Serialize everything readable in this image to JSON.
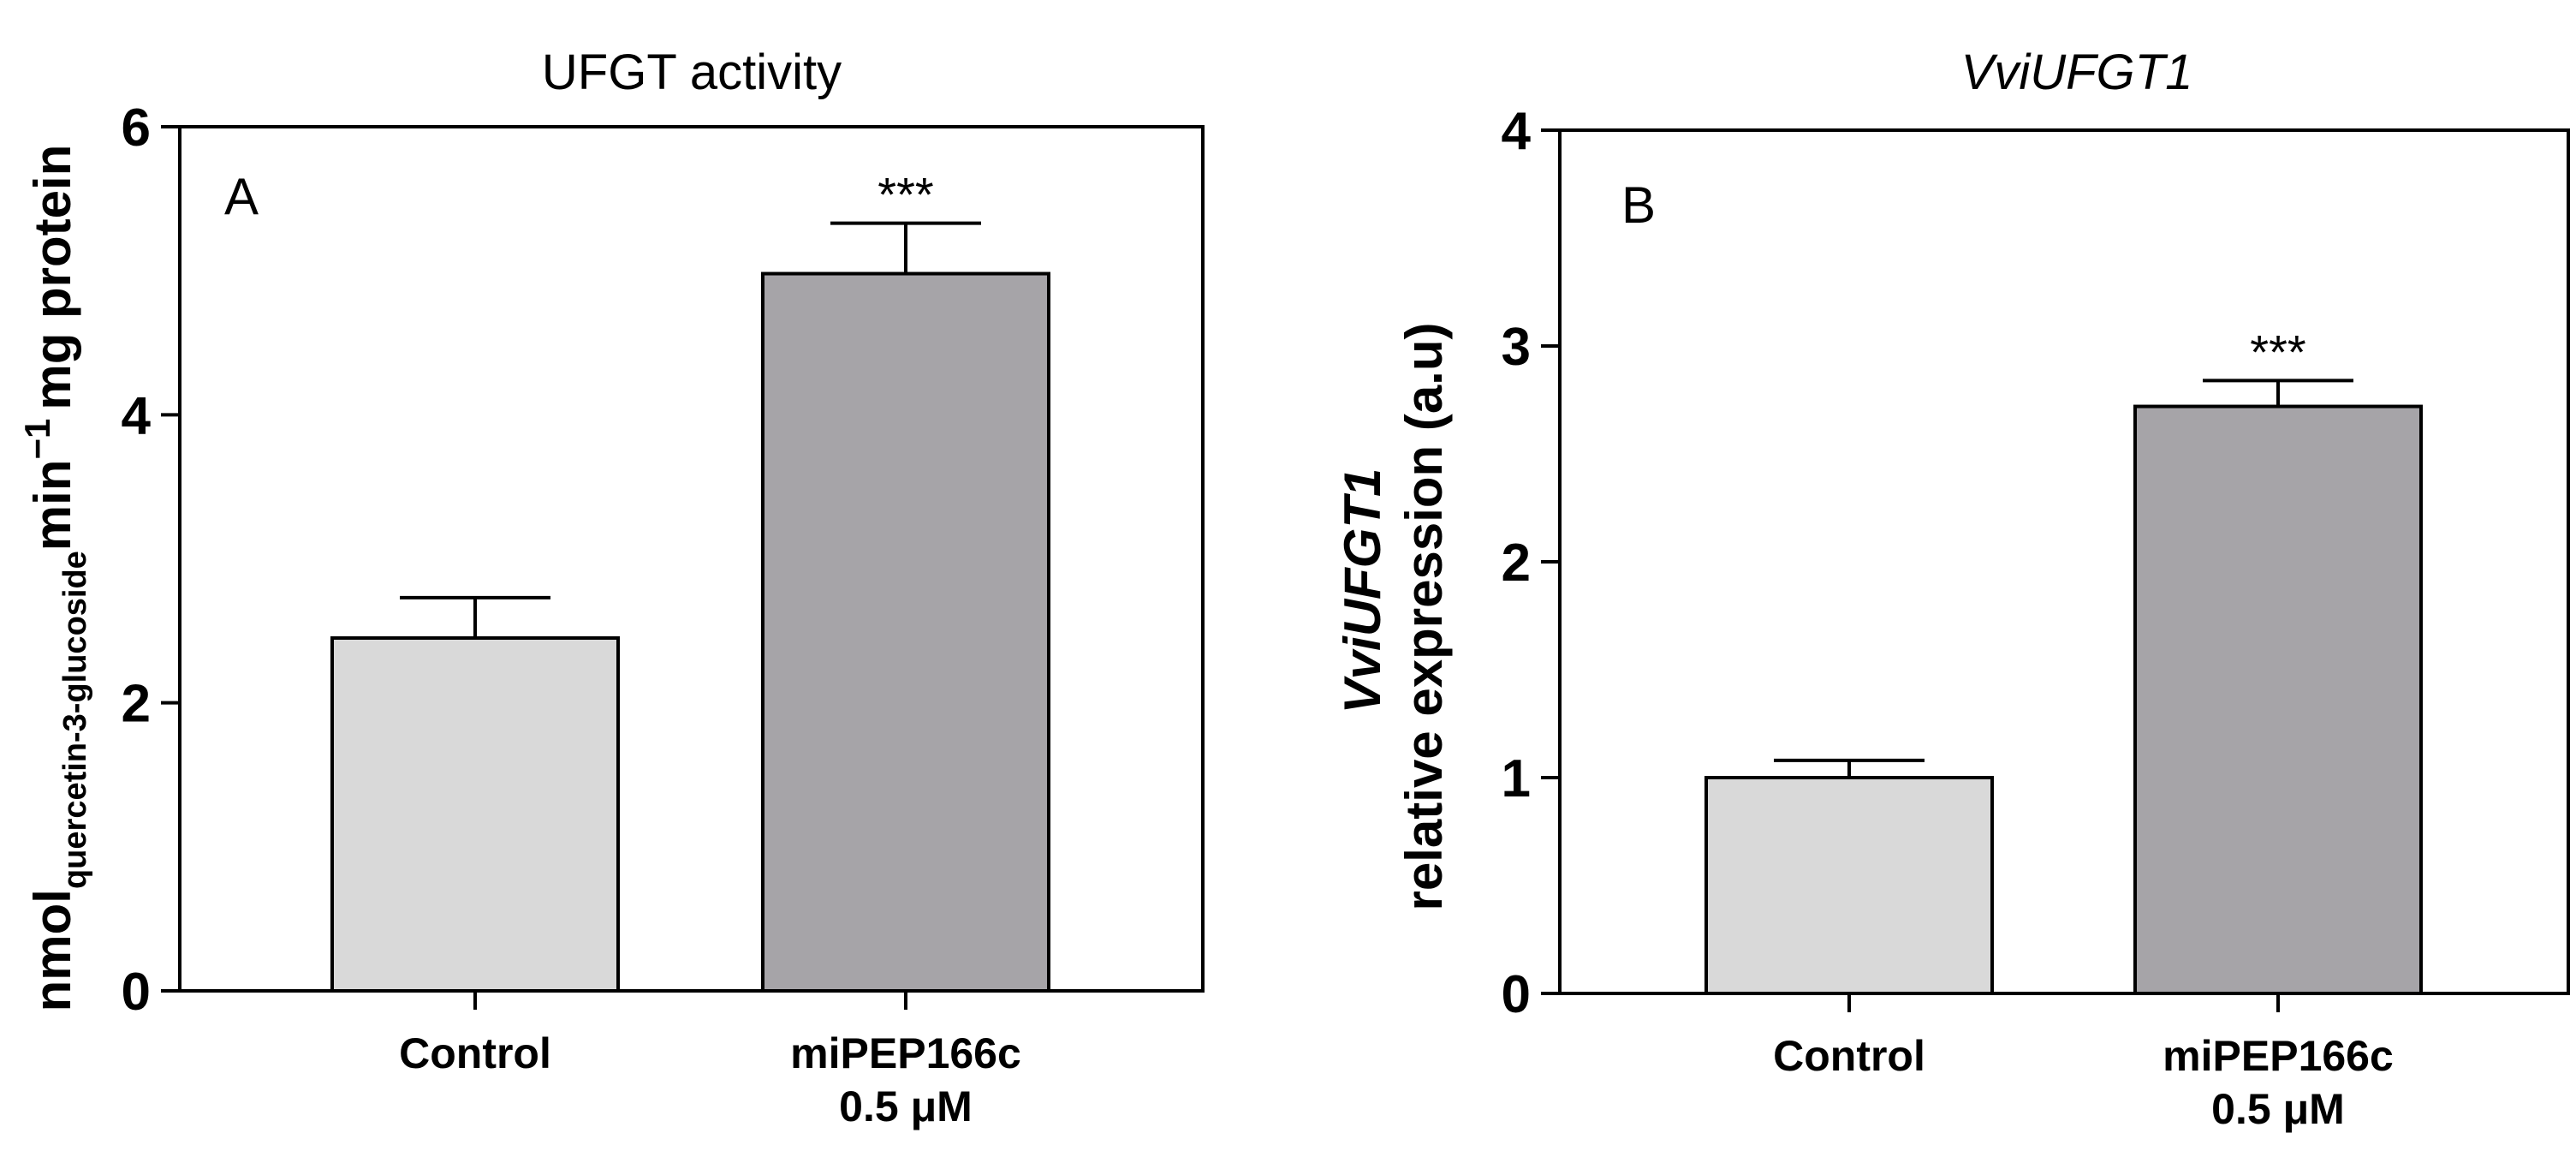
{
  "chart_data": [
    {
      "type": "bar",
      "panel": "A",
      "title": "UFGT activity",
      "ylabel": {
        "main": "nmol",
        "subscript": "quercetin-3-glucoside",
        "unit1": "min",
        "superscript": "−1",
        "unit2": "mg protein"
      },
      "ylim": [
        0,
        6
      ],
      "yticks": [
        "0",
        "2",
        "4",
        "6"
      ],
      "categories": [
        [
          "Control"
        ],
        [
          "miPEP166c",
          "0.5 μM"
        ]
      ],
      "values": [
        2.45,
        4.98
      ],
      "errors": [
        0.28,
        0.35
      ],
      "significance": [
        "",
        "***"
      ],
      "colors": [
        "#d9d9d9",
        "#a6a4a8"
      ]
    },
    {
      "type": "bar",
      "panel": "B",
      "title": "VviUFGT1",
      "ylabel": {
        "line1": "VviUFGT1",
        "line2": "relative expression (a.u)"
      },
      "ylim": [
        0,
        4
      ],
      "yticks": [
        "0",
        "1",
        "2",
        "3",
        "4"
      ],
      "categories": [
        [
          "Control"
        ],
        [
          "miPEP166c",
          "0.5 μM"
        ]
      ],
      "values": [
        1.0,
        2.72
      ],
      "errors": [
        0.08,
        0.12
      ],
      "significance": [
        "",
        "***"
      ],
      "colors": [
        "#d9d9d9",
        "#a6a4a8"
      ]
    }
  ]
}
